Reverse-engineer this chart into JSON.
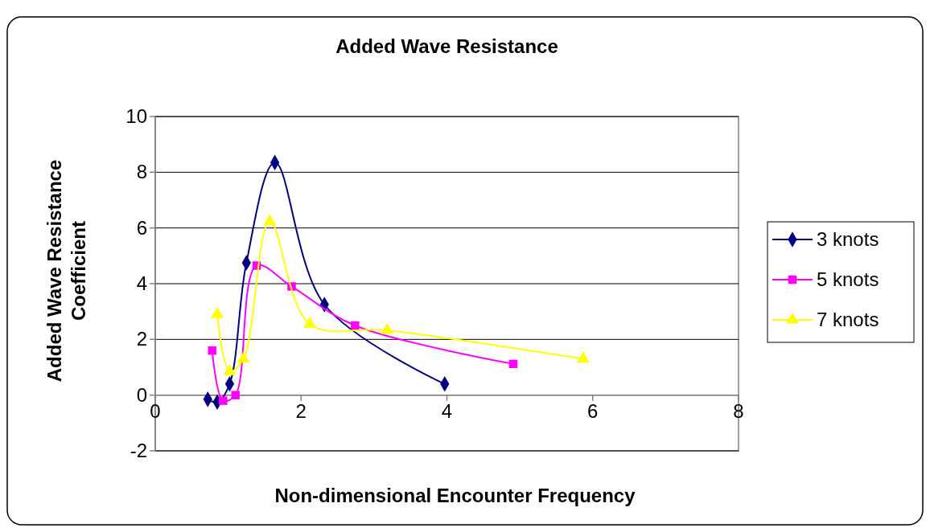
{
  "chart_data": {
    "type": "line",
    "title": "Added Wave Resistance",
    "xlabel": "Non-dimensional Encounter Frequency",
    "ylabel": "Added Wave Resistance Coefficient",
    "xlim": [
      0,
      8
    ],
    "xticks": [
      0,
      2,
      4,
      6,
      8
    ],
    "ylim": [
      -2,
      10
    ],
    "yticks": [
      -2,
      0,
      2,
      4,
      6,
      8,
      10
    ],
    "grid": "y",
    "legend": "right",
    "series": [
      {
        "name": "3 knots",
        "color": "#000080",
        "marker": "diamond",
        "x": [
          0.72,
          0.85,
          1.02,
          1.25,
          1.64,
          2.32,
          3.97
        ],
        "values": [
          -0.15,
          -0.25,
          0.4,
          4.75,
          8.35,
          3.25,
          0.4
        ]
      },
      {
        "name": "5 knots",
        "color": "#ff00ff",
        "marker": "square",
        "x": [
          0.78,
          0.93,
          1.1,
          1.39,
          1.87,
          2.74,
          4.91
        ],
        "values": [
          1.6,
          -0.2,
          0.0,
          4.65,
          3.9,
          2.5,
          1.12
        ]
      },
      {
        "name": "7 knots",
        "color": "#ffff00",
        "marker": "triangle",
        "x": [
          0.85,
          1.02,
          1.21,
          1.57,
          2.12,
          3.18,
          5.87
        ],
        "values": [
          2.9,
          0.85,
          1.3,
          6.23,
          2.55,
          2.33,
          1.3
        ]
      }
    ]
  }
}
